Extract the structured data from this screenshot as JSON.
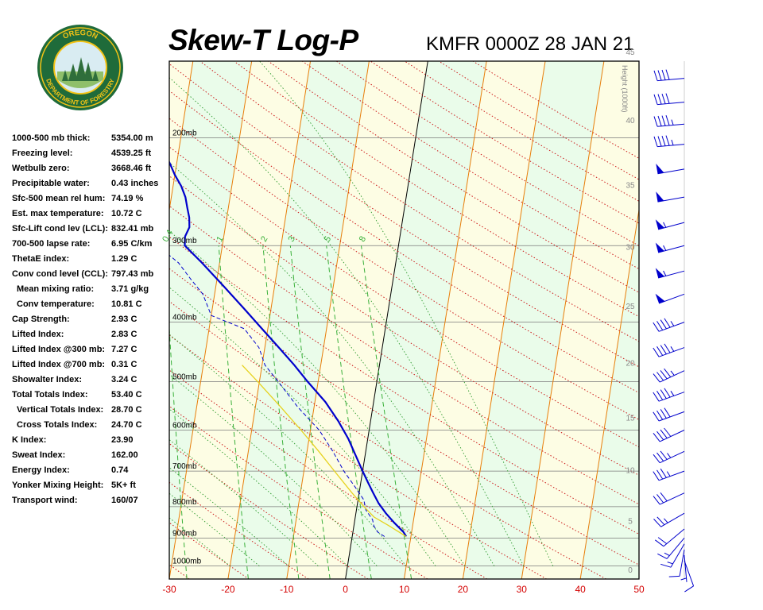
{
  "header": {
    "title": "Skew-T Log-P",
    "subtitle": "KMFR 0000Z 28 JAN 21"
  },
  "logo": {
    "text": "OREGON DEPARTMENT OF FORESTRY",
    "colors": {
      "ring": "#1f6b3a",
      "gold": "#f3c316",
      "sky": "#d9ecf2",
      "tree": "#2f6e3b"
    }
  },
  "stats": [
    {
      "label": "1000-500 mb thick:",
      "value": "5354.00 m",
      "indent": false
    },
    {
      "label": "Freezing level:",
      "value": "4539.25 ft",
      "indent": false
    },
    {
      "label": "Wetbulb zero:",
      "value": "3668.46 ft",
      "indent": false
    },
    {
      "label": "Precipitable water:",
      "value": "0.43 inches",
      "indent": false
    },
    {
      "label": "Sfc-500 mean rel hum:",
      "value": "74.19 %",
      "indent": false
    },
    {
      "label": "Est. max temperature:",
      "value": "10.72 C",
      "indent": false
    },
    {
      "label": "Sfc-Lift cond lev (LCL):",
      "value": "832.41 mb",
      "indent": false
    },
    {
      "label": "700-500 lapse rate:",
      "value": "6.95 C/km",
      "indent": false
    },
    {
      "label": "ThetaE index:",
      "value": "1.29 C",
      "indent": false
    },
    {
      "label": "Conv cond level (CCL):",
      "value": "797.43 mb",
      "indent": false
    },
    {
      "label": "Mean mixing ratio:",
      "value": "3.71 g/kg",
      "indent": true
    },
    {
      "label": "Conv temperature:",
      "value": "10.81 C",
      "indent": true
    },
    {
      "label": "Cap Strength:",
      "value": "2.93 C",
      "indent": false
    },
    {
      "label": "Lifted Index:",
      "value": "2.83 C",
      "indent": false
    },
    {
      "label": "Lifted Index @300 mb:",
      "value": "7.27 C",
      "indent": false
    },
    {
      "label": "Lifted Index @700 mb:",
      "value": "0.31 C",
      "indent": false
    },
    {
      "label": "Showalter Index:",
      "value": "3.24 C",
      "indent": false
    },
    {
      "label": "Total Totals Index:",
      "value": "53.40 C",
      "indent": false
    },
    {
      "label": "Vertical Totals Index:",
      "value": "28.70 C",
      "indent": true
    },
    {
      "label": "Cross Totals Index:",
      "value": "24.70 C",
      "indent": true
    },
    {
      "label": "K Index:",
      "value": "23.90",
      "indent": false
    },
    {
      "label": "Sweat Index:",
      "value": "162.00",
      "indent": false
    },
    {
      "label": "Energy Index:",
      "value": "0.74",
      "indent": false
    },
    {
      "label": "Yonker Mixing Height:",
      "value": "5K+ ft",
      "indent": false
    },
    {
      "label": "Transport wind:",
      "value": "160/07",
      "indent": false
    }
  ],
  "chart_data": {
    "type": "line",
    "title": "Skew-T Log-P",
    "xlabel": "",
    "ylabel": "",
    "x_range": [
      -30,
      50
    ],
    "x_ticks": [
      -30,
      -20,
      -10,
      0,
      10,
      20,
      30,
      40,
      50
    ],
    "pressure_levels": [
      {
        "p": 1000,
        "label": "1000mb"
      },
      {
        "p": 900,
        "label": "900mb"
      },
      {
        "p": 800,
        "label": "800mb"
      },
      {
        "p": 700,
        "label": "700mb"
      },
      {
        "p": 600,
        "label": "600mb"
      },
      {
        "p": 500,
        "label": "500mb"
      },
      {
        "p": 400,
        "label": "400mb"
      },
      {
        "p": 300,
        "label": "300mb"
      },
      {
        "p": 200,
        "label": "200mb"
      }
    ],
    "height_axis": {
      "title": "Height (1000ft)",
      "ticks": [
        "0",
        "5",
        "10",
        "15",
        "20",
        "25",
        "30",
        "35",
        "40",
        "45",
        "50"
      ]
    },
    "mixing_ratio_labels": [
      "0.4",
      "1",
      "2",
      "3",
      "5",
      "8"
    ],
    "colors": {
      "temperature": "#0000cc",
      "dewpoint": "#0000cc",
      "parcel": "#e6d21e",
      "isotherm": "#e87d0a",
      "dry_adiabat": "#cc1a1a",
      "moist_adiabat": "#2e9a2e",
      "mixing_ratio": "#39b039",
      "zero_isotherm": "#000000",
      "axis_labels": "#d40000"
    },
    "series": [
      {
        "name": "Temperature",
        "points": [
          [
            895,
            9.2
          ],
          [
            880,
            8.6
          ],
          [
            850,
            6.8
          ],
          [
            820,
            5.1
          ],
          [
            790,
            3.6
          ],
          [
            760,
            2.4
          ],
          [
            730,
            1.2
          ],
          [
            700,
            0.0
          ],
          [
            660,
            -1.6
          ],
          [
            620,
            -3.3
          ],
          [
            580,
            -5.5
          ],
          [
            540,
            -8.2
          ],
          [
            500,
            -11.8
          ],
          [
            470,
            -14.5
          ],
          [
            440,
            -17.6
          ],
          [
            410,
            -21.0
          ],
          [
            380,
            -24.6
          ],
          [
            350,
            -28.6
          ],
          [
            320,
            -33.0
          ],
          [
            300,
            -36.4
          ],
          [
            290,
            -36.6
          ],
          [
            280,
            -36.1
          ],
          [
            270,
            -36.4
          ],
          [
            260,
            -37.0
          ],
          [
            250,
            -37.6
          ],
          [
            240,
            -38.6
          ],
          [
            230,
            -40.0
          ],
          [
            220,
            -41.2
          ],
          [
            210,
            -42.6
          ],
          [
            200,
            -44.6
          ],
          [
            190,
            -45.8
          ],
          [
            180,
            -47.2
          ],
          [
            170,
            -49.0
          ],
          [
            160,
            -50.6
          ],
          [
            150,
            -52.0
          ]
        ]
      },
      {
        "name": "Dewpoint",
        "points": [
          [
            895,
            5.5
          ],
          [
            880,
            4.2
          ],
          [
            860,
            3.4
          ],
          [
            840,
            3.0
          ],
          [
            810,
            1.6
          ],
          [
            780,
            1.0
          ],
          [
            740,
            -1.0
          ],
          [
            700,
            -3.2
          ],
          [
            650,
            -5.6
          ],
          [
            600,
            -8.5
          ],
          [
            550,
            -12.8
          ],
          [
            500,
            -16.8
          ],
          [
            470,
            -19.5
          ],
          [
            440,
            -21.0
          ],
          [
            410,
            -24.0
          ],
          [
            390,
            -30.0
          ],
          [
            360,
            -32.0
          ],
          [
            340,
            -34.5
          ],
          [
            320,
            -37.0
          ],
          [
            305,
            -40.0
          ],
          [
            295,
            -48.0
          ],
          [
            280,
            -55.0
          ],
          [
            260,
            -62.0
          ],
          [
            240,
            -67.0
          ],
          [
            220,
            -72.0
          ],
          [
            200,
            -75.0
          ],
          [
            185,
            -77.0
          ],
          [
            170,
            -78.0
          ],
          [
            160,
            -78.5
          ],
          [
            150,
            -79.0
          ]
        ]
      },
      {
        "name": "Parcel",
        "points": [
          [
            895,
            9.2
          ],
          [
            860,
            6.0
          ],
          [
            832,
            3.2
          ],
          [
            800,
            1.2
          ],
          [
            760,
            -1.2
          ],
          [
            700,
            -4.8
          ],
          [
            650,
            -8.0
          ],
          [
            600,
            -11.6
          ],
          [
            550,
            -15.7
          ],
          [
            500,
            -20.3
          ],
          [
            470,
            -23.4
          ]
        ]
      }
    ],
    "wind_barbs": [
      {
        "p": 980,
        "dir": 160,
        "speed": 10
      },
      {
        "p": 960,
        "dir": 175,
        "speed": 5
      },
      {
        "p": 940,
        "dir": 190,
        "speed": 10
      },
      {
        "p": 920,
        "dir": 210,
        "speed": 15
      },
      {
        "p": 900,
        "dir": 220,
        "speed": 15
      },
      {
        "p": 870,
        "dir": 230,
        "speed": 20
      },
      {
        "p": 820,
        "dir": 240,
        "speed": 25
      },
      {
        "p": 760,
        "dir": 245,
        "speed": 30
      },
      {
        "p": 700,
        "dir": 250,
        "speed": 35
      },
      {
        "p": 650,
        "dir": 245,
        "speed": 35
      },
      {
        "p": 600,
        "dir": 245,
        "speed": 40
      },
      {
        "p": 560,
        "dir": 250,
        "speed": 40
      },
      {
        "p": 520,
        "dir": 250,
        "speed": 45
      },
      {
        "p": 480,
        "dir": 245,
        "speed": 45
      },
      {
        "p": 440,
        "dir": 250,
        "speed": 45
      },
      {
        "p": 400,
        "dir": 250,
        "speed": 45
      },
      {
        "p": 360,
        "dir": 250,
        "speed": 50
      },
      {
        "p": 330,
        "dir": 255,
        "speed": 55
      },
      {
        "p": 300,
        "dir": 255,
        "speed": 55
      },
      {
        "p": 275,
        "dir": 255,
        "speed": 55
      },
      {
        "p": 250,
        "dir": 260,
        "speed": 50
      },
      {
        "p": 225,
        "dir": 260,
        "speed": 50
      },
      {
        "p": 205,
        "dir": 265,
        "speed": 45
      },
      {
        "p": 190,
        "dir": 265,
        "speed": 45
      },
      {
        "p": 175,
        "dir": 265,
        "speed": 40
      },
      {
        "p": 160,
        "dir": 265,
        "speed": 40
      }
    ]
  }
}
